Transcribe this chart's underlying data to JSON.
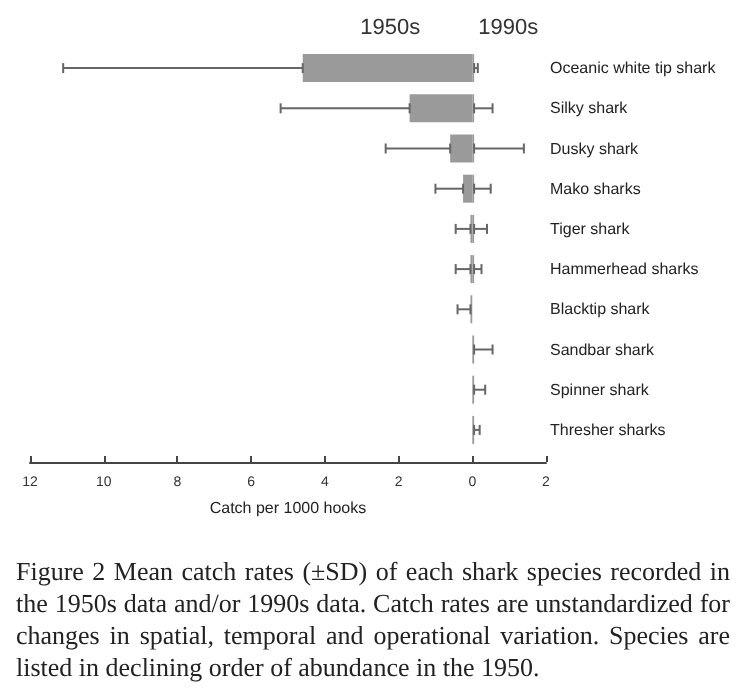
{
  "chart_data": {
    "type": "bar",
    "orientation": "horizontal",
    "categories": [
      "Oceanic white tip shark",
      "Silky shark",
      "Dusky shark",
      "Mako sharks",
      "Tiger shark",
      "Hammerhead sharks",
      "Blacktip shark",
      "Sandbar shark",
      "Spinner shark",
      "Thresher sharks"
    ],
    "xlabel": "Catch per 1000 hooks",
    "xlim": [
      -12,
      2
    ],
    "xticks": [
      {
        "value": -12,
        "label": "12"
      },
      {
        "value": -10,
        "label": "10"
      },
      {
        "value": -8,
        "label": "8"
      },
      {
        "value": -6,
        "label": "6"
      },
      {
        "value": -4,
        "label": "4"
      },
      {
        "value": -2,
        "label": "2"
      },
      0,
      2
    ],
    "series": [
      {
        "name": "1950s",
        "color": "#9a9a9a",
        "values": [
          -4.6,
          -1.7,
          -0.6,
          -0.25,
          -0.05,
          -0.05,
          -0.05,
          null,
          null,
          null
        ],
        "errors": [
          [
            -11.1,
            -4.6
          ],
          [
            -5.2,
            -1.7
          ],
          [
            -2.35,
            -0.6
          ],
          [
            -1.0,
            -0.25
          ],
          [
            -0.45,
            -0.05
          ],
          [
            -0.45,
            -0.05
          ],
          [
            -0.4,
            -0.05
          ],
          null,
          null,
          null
        ]
      },
      {
        "name": "1990s",
        "color": "#9a9a9a",
        "values": [
          0.05,
          0.05,
          0.05,
          0.05,
          0.05,
          0.05,
          null,
          0.05,
          0.05,
          0.05
        ],
        "errors": [
          [
            0.05,
            0.15
          ],
          [
            0.05,
            0.55
          ],
          [
            0.05,
            1.4
          ],
          [
            0.05,
            0.5
          ],
          [
            0.05,
            0.4
          ],
          [
            0.05,
            0.25
          ],
          null,
          [
            0.05,
            0.55
          ],
          [
            0.05,
            0.35
          ],
          [
            0.05,
            0.2
          ]
        ]
      }
    ],
    "annotations": [
      "Figure 2 Mean catch rates (±SD) of each shark species recorded in the 1950s data and/or 1990s data. Catch rates are unstandardized for changes in spatial, temporal and operational variation. Species are listed in declining order of abundance in the 1950."
    ]
  }
}
